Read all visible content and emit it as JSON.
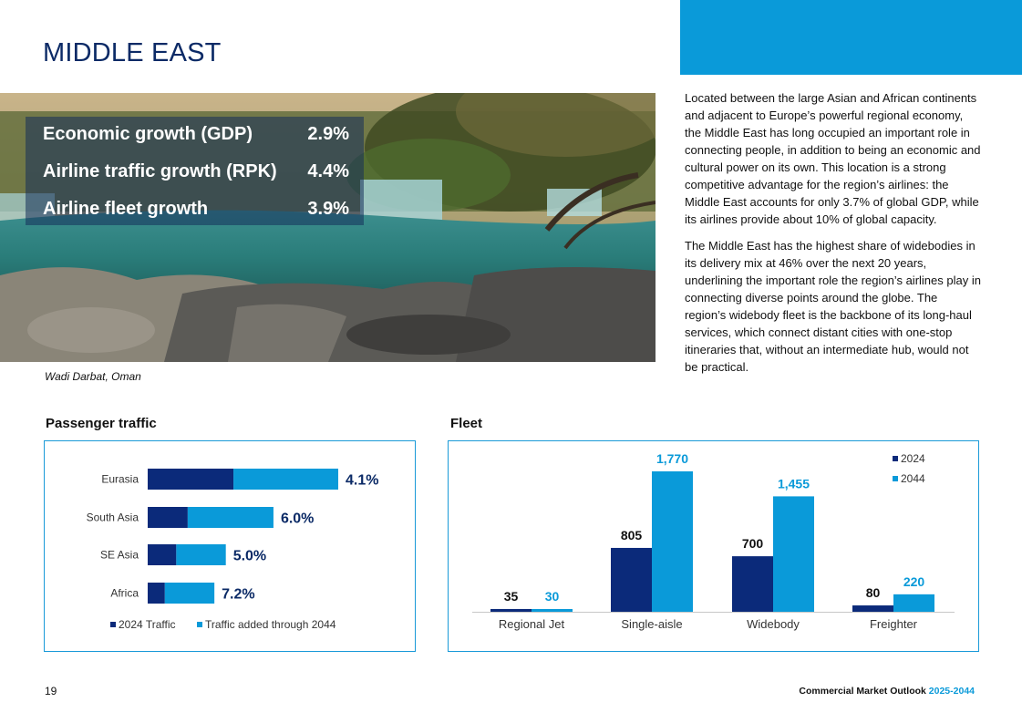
{
  "page": {
    "title": "MIDDLE EAST",
    "page_number": "19",
    "publication": "Commercial Market Outlook",
    "publication_years": "2025-2044",
    "photo_caption": "Wadi Darbat, Oman"
  },
  "stats": [
    {
      "label": "Economic growth (GDP)",
      "value": "2.9%"
    },
    {
      "label": "Airline traffic growth (RPK)",
      "value": "4.4%"
    },
    {
      "label": "Airline fleet growth",
      "value": "3.9%"
    }
  ],
  "paragraphs": [
    "Located between the large Asian and African continents and adjacent to Europe’s powerful regional economy, the Middle East has long occupied an important role in connecting people, in addition to being an economic and cultural power on its own. This location is a strong competitive advantage for the region’s airlines: the Middle East accounts for only 3.7% of global GDP, while its airlines provide about 10% of global capacity.",
    "The Middle East has the highest share of widebodies in its delivery mix at 46% over the next 20 years, underlining the important role the region’s airlines play in connecting diverse points around the globe. The region’s widebody fleet is the backbone of its long-haul services, which connect distant cities with one-stop itineraries that, without an intermediate hub, would not be practical."
  ],
  "colors": {
    "dark": "#0b2a7a",
    "light": "#0a9ad9",
    "title": "#0b2a66",
    "border": "#1a9ad8"
  },
  "chart_data": [
    {
      "type": "bar",
      "orientation": "horizontal",
      "stacked": true,
      "title": "Passenger traffic",
      "categories": [
        "Eurasia",
        "South Asia",
        "SE Asia",
        "Africa"
      ],
      "series": [
        {
          "name": "2024 Traffic",
          "values": [
            45,
            21,
            15,
            9
          ]
        },
        {
          "name": "Traffic added through 2044",
          "values": [
            55,
            45,
            26,
            26
          ]
        }
      ],
      "labels": [
        "4.1%",
        "6.0%",
        "5.0%",
        "7.2%"
      ],
      "xlim": [
        0,
        100
      ],
      "legend": "bottom"
    },
    {
      "type": "bar",
      "title": "Fleet",
      "categories": [
        "Regional Jet",
        "Single-aisle",
        "Widebody",
        "Freighter"
      ],
      "series": [
        {
          "name": "2024",
          "values": [
            35,
            805,
            700,
            80
          ]
        },
        {
          "name": "2044",
          "values": [
            30,
            1770,
            1455,
            220
          ]
        }
      ],
      "value_labels": [
        [
          "35",
          "805",
          "700",
          "80"
        ],
        [
          "30",
          "1,770",
          "1,455",
          "220"
        ]
      ],
      "ylim": [
        0,
        1770
      ],
      "legend": "top-right"
    }
  ]
}
